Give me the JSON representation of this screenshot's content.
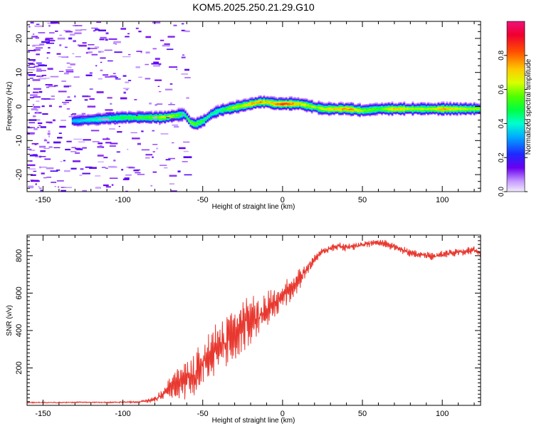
{
  "title": "KOM5.2025.250.21.29.G10",
  "chart_data": [
    {
      "type": "heatmap",
      "name": "spectrogram",
      "xlabel": "Height of straight line (km)",
      "ylabel": "Frequency (Hz)",
      "xlim": [
        -160,
        124
      ],
      "ylim": [
        -25,
        25
      ],
      "xticks": [
        -150,
        -100,
        -50,
        0,
        50,
        100
      ],
      "yticks": [
        -20,
        -10,
        0,
        10,
        20
      ],
      "colorbar": {
        "label": "Normalized spectral amplitude",
        "range": [
          0,
          1
        ],
        "ticks": [
          0.0,
          0.2,
          0.4,
          0.6,
          0.8
        ],
        "tick_labels": [
          "0.0",
          "0.2",
          "0.4",
          "0.6",
          "0.8"
        ]
      },
      "ridge": {
        "description": "dominant frequency track",
        "x": [
          -130,
          -115,
          -100,
          -85,
          -75,
          -68,
          -62,
          -58,
          -55,
          -50,
          -45,
          -40,
          -35,
          -30,
          -25,
          -20,
          -15,
          -10,
          -5,
          0,
          10,
          20,
          25,
          30,
          40,
          50,
          60,
          70,
          80,
          90,
          100,
          110,
          124
        ],
        "y": [
          -4,
          -3.5,
          -3,
          -3,
          -3,
          -2.5,
          -2,
          -4.5,
          -5,
          -4,
          -2,
          -1,
          -0.5,
          0,
          0.5,
          1,
          1.5,
          1.5,
          1,
          1,
          1,
          0,
          -0.5,
          -0.5,
          -0.5,
          -1,
          -0.5,
          -0.5,
          -0.5,
          -0.5,
          -0.5,
          -0.5,
          -0.5
        ],
        "amplitude": [
          0.35,
          0.45,
          0.5,
          0.55,
          0.65,
          0.6,
          0.45,
          0.6,
          0.55,
          0.5,
          0.45,
          0.45,
          0.55,
          0.65,
          0.65,
          0.75,
          0.75,
          0.7,
          0.75,
          0.85,
          0.7,
          0.6,
          0.65,
          0.7,
          0.8,
          0.6,
          0.55,
          0.75,
          0.65,
          0.6,
          0.75,
          0.65,
          0.6
        ]
      }
    },
    {
      "type": "line",
      "name": "snr",
      "xlabel": "Height of straight line (km)",
      "ylabel": "SNR (v/v)",
      "xlim": [
        -160,
        124
      ],
      "ylim": [
        0,
        910
      ],
      "xticks": [
        -150,
        -100,
        -50,
        0,
        50,
        100
      ],
      "yticks": [
        200,
        400,
        600,
        800
      ],
      "series": [
        {
          "name": "SNR",
          "color": "#e8382f",
          "x": [
            -160,
            -150,
            -140,
            -130,
            -120,
            -110,
            -100,
            -90,
            -80,
            -75,
            -70,
            -65,
            -60,
            -55,
            -50,
            -45,
            -40,
            -35,
            -30,
            -25,
            -20,
            -15,
            -10,
            -5,
            0,
            5,
            10,
            15,
            20,
            25,
            30,
            35,
            40,
            45,
            50,
            55,
            60,
            65,
            70,
            75,
            80,
            85,
            90,
            95,
            100,
            105,
            110,
            115,
            120,
            124
          ],
          "y": [
            15,
            15,
            15,
            16,
            16,
            16,
            17,
            18,
            30,
            60,
            100,
            120,
            140,
            170,
            210,
            250,
            300,
            340,
            370,
            420,
            450,
            480,
            510,
            540,
            580,
            620,
            670,
            730,
            780,
            820,
            840,
            850,
            845,
            850,
            860,
            865,
            870,
            860,
            845,
            830,
            815,
            805,
            800,
            795,
            805,
            815,
            815,
            825,
            830,
            810
          ],
          "noise": [
            3,
            3,
            3,
            3,
            3,
            3,
            4,
            4,
            15,
            35,
            60,
            80,
            100,
            110,
            120,
            130,
            140,
            140,
            140,
            130,
            120,
            110,
            100,
            90,
            70,
            60,
            50,
            40,
            25,
            20,
            20,
            20,
            20,
            20,
            20,
            20,
            20,
            20,
            20,
            20,
            20,
            20,
            20,
            20,
            20,
            20,
            20,
            20,
            20,
            20
          ]
        }
      ]
    }
  ]
}
